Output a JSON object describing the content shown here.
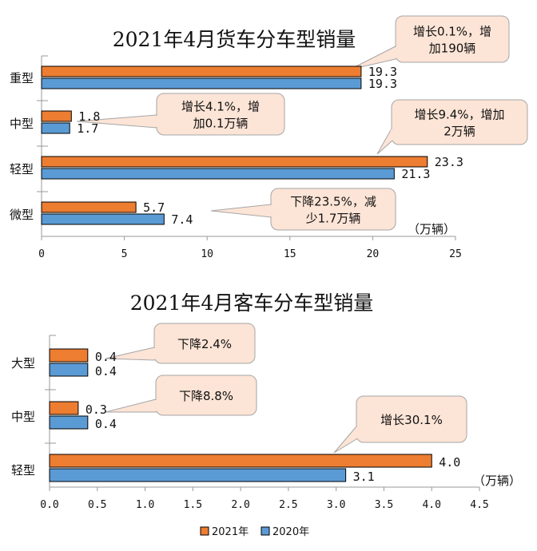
{
  "colors": {
    "series_2021": "#ED7D31",
    "series_2020": "#5B9BD5",
    "callout_fill": "#FCE4D6",
    "callout_stroke": "#A6A6A6"
  },
  "chart_data": [
    {
      "type": "bar",
      "orientation": "horizontal",
      "title": "2021年4月货车分车型销量",
      "unit_label": "（万辆）",
      "categories": [
        "重型",
        "中型",
        "轻型",
        "微型"
      ],
      "series": [
        {
          "name": "2021年",
          "values": [
            19.3,
            1.8,
            23.3,
            5.7
          ],
          "value_labels": [
            "19.3",
            "1.8",
            "23.3",
            "5.7"
          ]
        },
        {
          "name": "2020年",
          "values": [
            19.3,
            1.7,
            21.3,
            7.4
          ],
          "value_labels": [
            "19.3",
            "1.7",
            "21.3",
            "7.4"
          ]
        }
      ],
      "xlim": [
        0,
        25
      ],
      "xticks": [
        "0",
        "5",
        "10",
        "15",
        "20",
        "25"
      ],
      "annotations": [
        {
          "category": "重型",
          "lines": [
            "增长0.1%，增",
            "加190辆"
          ]
        },
        {
          "category": "中型",
          "lines": [
            "增长4.1%，增",
            "加0.1万辆"
          ]
        },
        {
          "category": "轻型",
          "lines": [
            "增长9.4%，增加",
            "2万辆"
          ]
        },
        {
          "category": "微型",
          "lines": [
            "下降23.5%，减",
            "少1.7万辆"
          ]
        }
      ]
    },
    {
      "type": "bar",
      "orientation": "horizontal",
      "title": "2021年4月客车分车型销量",
      "unit_label": "（万辆）",
      "categories": [
        "大型",
        "中型",
        "轻型"
      ],
      "series": [
        {
          "name": "2021年",
          "values": [
            0.4,
            0.3,
            4.0
          ],
          "value_labels": [
            "0.4",
            "0.3",
            "4.0"
          ]
        },
        {
          "name": "2020年",
          "values": [
            0.4,
            0.4,
            3.1
          ],
          "value_labels": [
            "0.4",
            "0.4",
            "3.1"
          ]
        }
      ],
      "xlim": [
        0,
        4.5
      ],
      "xticks": [
        "0.0",
        "0.5",
        "1.0",
        "1.5",
        "2.0",
        "2.5",
        "3.0",
        "3.5",
        "4.0",
        "4.5"
      ],
      "annotations": [
        {
          "category": "大型",
          "lines": [
            "下降2.4%"
          ]
        },
        {
          "category": "中型",
          "lines": [
            "下降8.8%"
          ]
        },
        {
          "category": "轻型",
          "lines": [
            "增长30.1%"
          ]
        }
      ]
    }
  ],
  "legend": {
    "items": [
      {
        "label": "2021年",
        "color_key": "series_2021"
      },
      {
        "label": "2020年",
        "color_key": "series_2020"
      }
    ]
  }
}
